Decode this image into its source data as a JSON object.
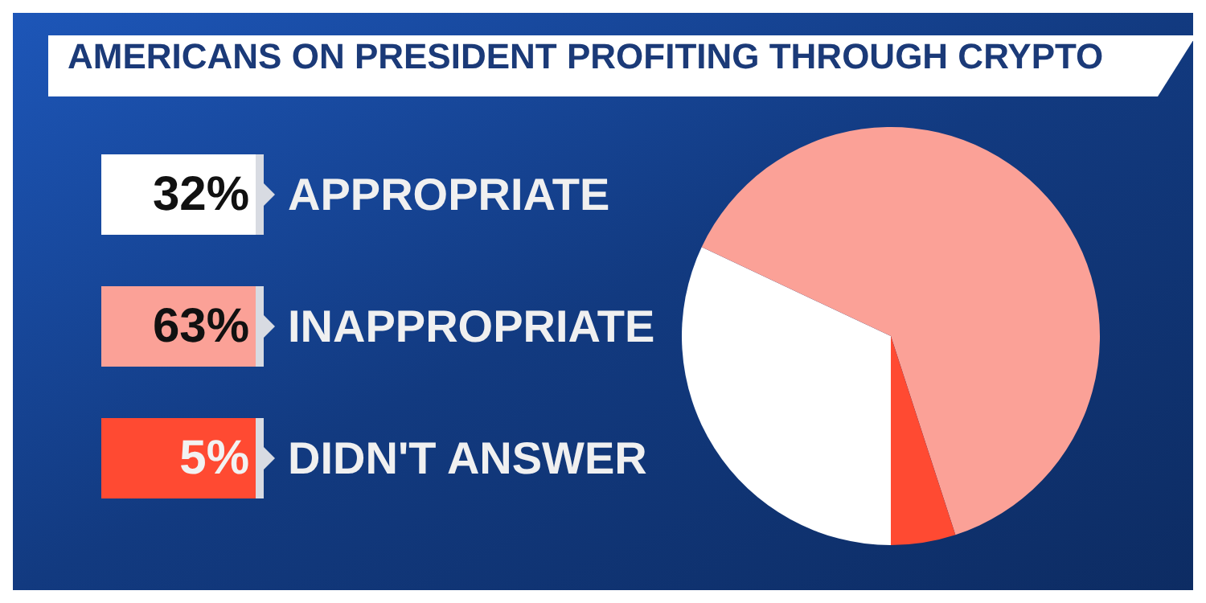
{
  "chart_data": {
    "type": "pie",
    "title": "AMERICANS ON PRESIDENT PROFITING THROUGH CRYPTO",
    "categories": [
      "APPROPRIATE",
      "INAPPROPRIATE",
      "DIDN'T ANSWER"
    ],
    "values": [
      32,
      63,
      5
    ],
    "colors": [
      "#ffffff",
      "#fba197",
      "#ff4a32"
    ],
    "value_labels": [
      "32%",
      "63%",
      "5%"
    ],
    "legend": "left"
  }
}
